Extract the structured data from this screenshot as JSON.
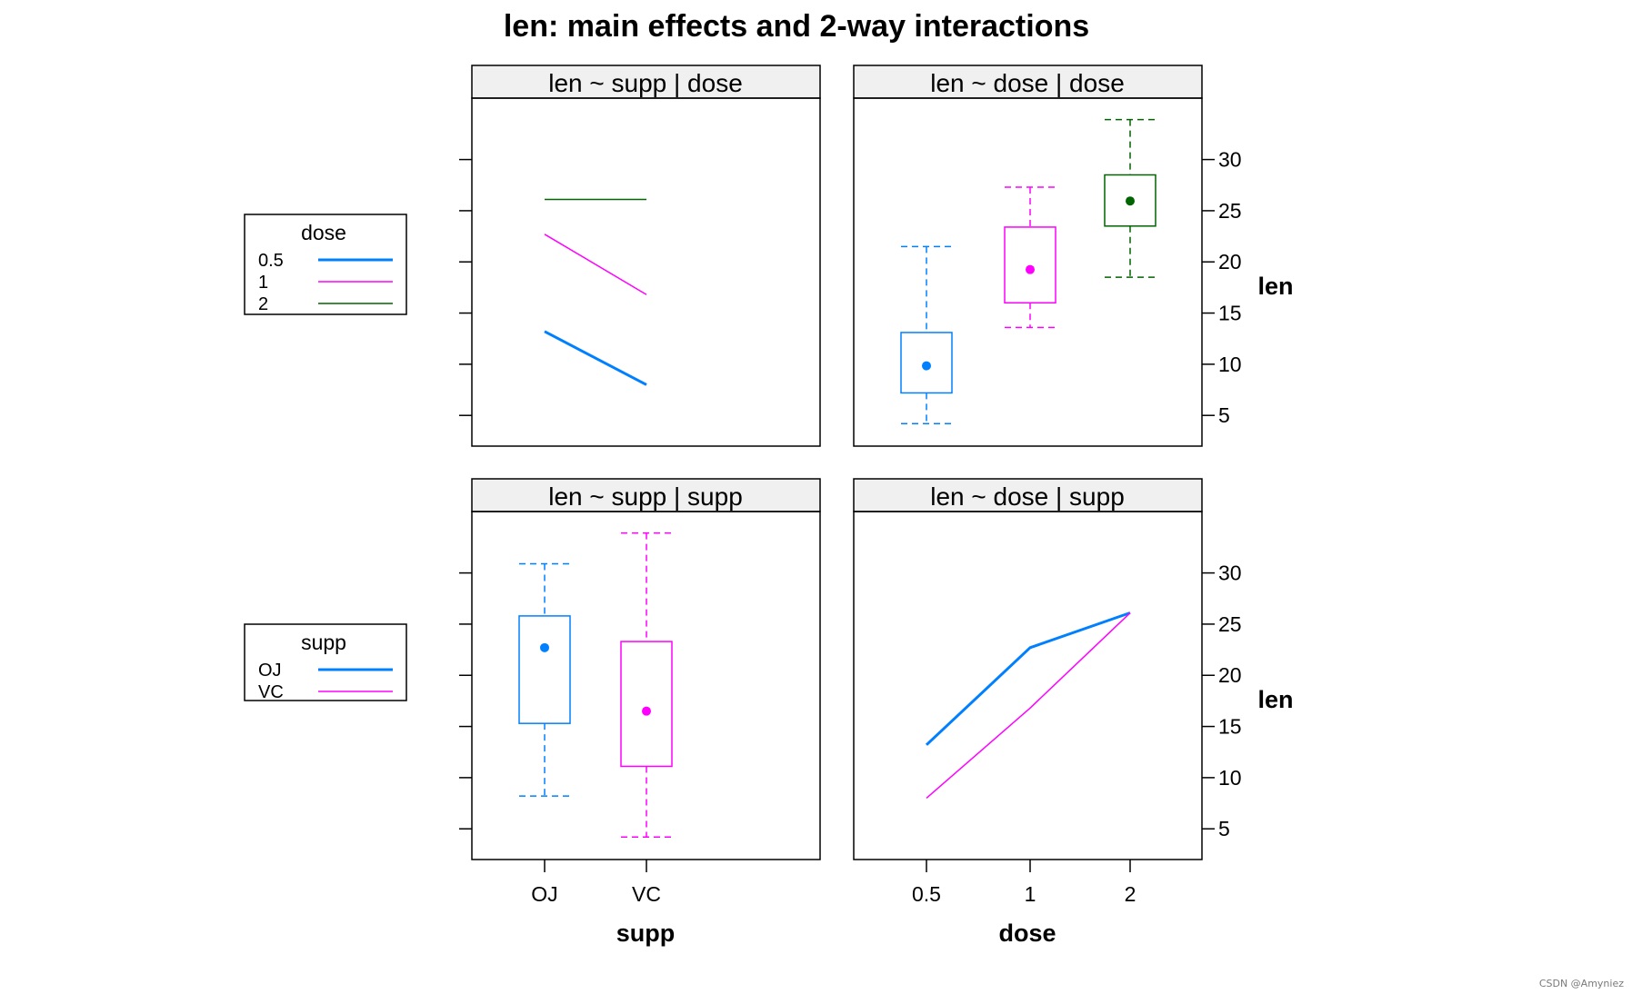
{
  "title": "len: main effects and 2-way interactions",
  "watermark": "CSDN @Amyniez",
  "y_axis_label": "len",
  "x_axis_labels": {
    "supp": "supp",
    "dose": "dose"
  },
  "y_ticks": [
    "5",
    "10",
    "15",
    "20",
    "25",
    "30"
  ],
  "x_ticks_supp": [
    "OJ",
    "VC"
  ],
  "x_ticks_dose": [
    "0.5",
    "1",
    "2"
  ],
  "legends": {
    "dose": {
      "title": "dose",
      "items": [
        {
          "label": "0.5",
          "color": "#0080ff",
          "width": 3
        },
        {
          "label": "1",
          "color": "#ff00ff",
          "width": 1.5
        },
        {
          "label": "2",
          "color": "#006400",
          "width": 1.5
        }
      ]
    },
    "supp": {
      "title": "supp",
      "items": [
        {
          "label": "OJ",
          "color": "#0080ff",
          "width": 3
        },
        {
          "label": "VC",
          "color": "#ff00ff",
          "width": 1.5
        }
      ]
    }
  },
  "panels": {
    "tl": {
      "strip": "len ~ supp | dose"
    },
    "tr": {
      "strip": "len ~ dose | dose"
    },
    "bl": {
      "strip": "len ~ supp | supp"
    },
    "br": {
      "strip": "len ~ dose | supp"
    }
  },
  "chart_data": [
    {
      "panel": "len ~ supp | dose",
      "type": "line",
      "x": [
        "OJ",
        "VC"
      ],
      "series": [
        {
          "name": "0.5",
          "values": [
            13.2,
            8.0
          ]
        },
        {
          "name": "1",
          "values": [
            22.7,
            16.8
          ]
        },
        {
          "name": "2",
          "values": [
            26.1,
            26.1
          ]
        }
      ],
      "ylim": [
        2,
        36
      ]
    },
    {
      "panel": "len ~ dose | dose",
      "type": "box",
      "categories": [
        "0.5",
        "1",
        "2"
      ],
      "boxes": [
        {
          "min": 4.2,
          "q1": 7.2,
          "median": 9.85,
          "q3": 13.1,
          "max": 21.5
        },
        {
          "min": 13.6,
          "q1": 16.0,
          "median": 19.25,
          "q3": 23.4,
          "max": 27.3
        },
        {
          "min": 18.5,
          "q1": 23.5,
          "median": 25.95,
          "q3": 28.5,
          "max": 33.9
        }
      ],
      "ylim": [
        2,
        36
      ]
    },
    {
      "panel": "len ~ supp | supp",
      "type": "box",
      "categories": [
        "OJ",
        "VC"
      ],
      "boxes": [
        {
          "min": 8.2,
          "q1": 15.3,
          "median": 22.7,
          "q3": 25.8,
          "max": 30.9
        },
        {
          "min": 4.2,
          "q1": 11.1,
          "median": 16.5,
          "q3": 23.3,
          "max": 33.9
        }
      ],
      "ylim": [
        2,
        36
      ]
    },
    {
      "panel": "len ~ dose | supp",
      "type": "line",
      "x": [
        "0.5",
        "1",
        "2"
      ],
      "series": [
        {
          "name": "OJ",
          "values": [
            13.2,
            22.7,
            26.1
          ]
        },
        {
          "name": "VC",
          "values": [
            8.0,
            16.8,
            26.1
          ]
        }
      ],
      "ylim": [
        2,
        36
      ]
    }
  ]
}
